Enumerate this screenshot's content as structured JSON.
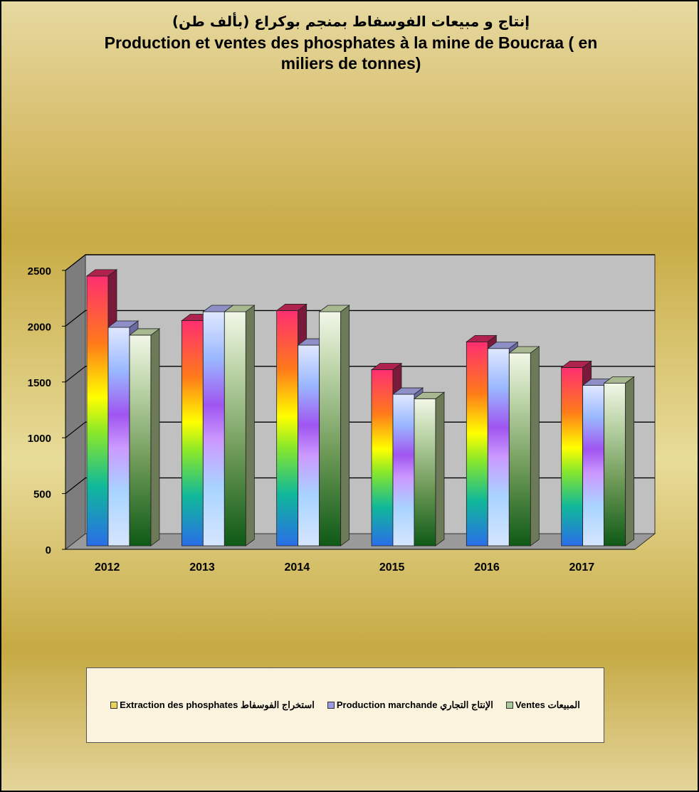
{
  "chart_data": {
    "type": "bar",
    "title_ar": "إنتاج و مبيعات الفوسفاط بمنجم بوكراع (بألف طن)",
    "title_fr_line1": "Production et ventes des phosphates à la mine de Boucraa ( en",
    "title_fr_line2": "miliers de tonnes)",
    "categories": [
      "2012",
      "2013",
      "2014",
      "2015",
      "2016",
      "2017"
    ],
    "yticks": [
      "0",
      "500",
      "1000",
      "1500",
      "2000",
      "2500"
    ],
    "ylim": [
      0,
      2500
    ],
    "grid": true,
    "series": [
      {
        "name": "Extraction des phosphates استخراج الفوسفاط",
        "values": [
          2450,
          2050,
          2140,
          1610,
          1860,
          1630
        ]
      },
      {
        "name": "Production marchande الإنتاج التجاري",
        "values": [
          1990,
          2130,
          1830,
          1390,
          1800,
          1470
        ]
      },
      {
        "name": "Ventes المبيعات",
        "values": [
          1920,
          2130,
          2130,
          1350,
          1760,
          1490
        ]
      }
    ],
    "legend_position": "bottom"
  },
  "colors": {
    "series_tops": [
      "#b0224e",
      "#8f8fc8",
      "#a8b890"
    ],
    "series_sides": [
      "#7a1a3a",
      "#6a6aa0",
      "#6c7a58"
    ],
    "swatches": [
      "#e6d55a",
      "#9a9ae6",
      "#a8c8a0"
    ],
    "wall": "#c0c0c0",
    "side_wall": "#7d7d7d",
    "floor": "#9a9a9a"
  }
}
